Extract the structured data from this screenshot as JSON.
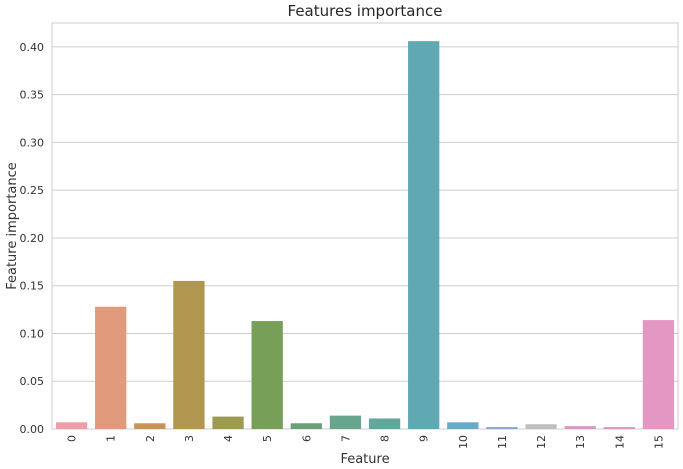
{
  "chart_data": {
    "type": "bar",
    "title": "Features importance",
    "xlabel": "Feature",
    "ylabel": "Feature importance",
    "categories": [
      "0",
      "1",
      "2",
      "3",
      "4",
      "5",
      "6",
      "7",
      "8",
      "9",
      "10",
      "11",
      "12",
      "13",
      "14",
      "15"
    ],
    "values": [
      0.007,
      0.128,
      0.006,
      0.155,
      0.013,
      0.113,
      0.006,
      0.014,
      0.011,
      0.406,
      0.007,
      0.002,
      0.005,
      0.003,
      0.002,
      0.114
    ],
    "colors": [
      "#e8a0a8",
      "#df9b7c",
      "#c8935a",
      "#b0964f",
      "#9d9b52",
      "#779f58",
      "#6aa073",
      "#67a58f",
      "#63a79a",
      "#60a8b2",
      "#6aaac6",
      "#8aa2d2",
      "#bfbfbf",
      "#d39bc4",
      "#dd96c0",
      "#e397c2"
    ],
    "yticks": [
      "0.00",
      "0.05",
      "0.10",
      "0.15",
      "0.20",
      "0.25",
      "0.30",
      "0.35",
      "0.40"
    ],
    "ylim": [
      0,
      0.425
    ],
    "grid": true,
    "legend": "none"
  }
}
